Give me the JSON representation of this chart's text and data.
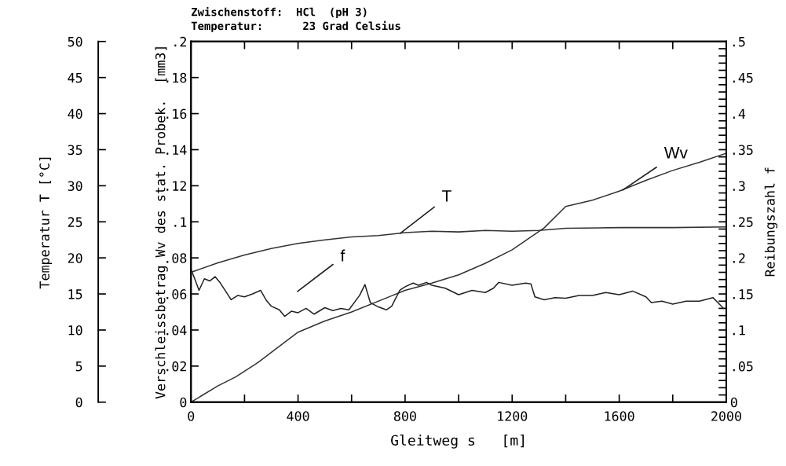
{
  "chart_data": {
    "type": "line",
    "title": "Zwischenstoff:  HCl  (pH 3)",
    "subtitle": "Temperatur:      23 Grad Celsius",
    "xlabel": "Gleitweg s   [m]",
    "ylabel": "Verschleissbetrag Wv des stat. Probek.  [mm3]",
    "y2label": "Reibungszahl f",
    "y3label": "Temperatur T [°C]",
    "xlim": [
      0,
      2000
    ],
    "xticks": [
      0,
      {
        "value": 200,
        "label": null
      },
      400,
      {
        "value": 600,
        "label": null
      },
      800,
      {
        "value": 1000,
        "label": null
      },
      1200,
      {
        "value": 1400,
        "label": null
      },
      1600,
      {
        "value": 1800,
        "label": null
      },
      2000
    ],
    "ylim": [
      0,
      0.2
    ],
    "yticks": [
      0,
      {
        "value": 0.02,
        "label": ".02"
      },
      {
        "value": 0.04,
        "label": ".04"
      },
      {
        "value": 0.06,
        "label": ".06"
      },
      {
        "value": 0.08,
        "label": ".08"
      },
      {
        "value": 0.1,
        "label": ".1"
      },
      {
        "value": 0.12,
        "label": ".12"
      },
      {
        "value": 0.14,
        "label": ".14"
      },
      {
        "value": 0.16,
        "label": ".16"
      },
      {
        "value": 0.18,
        "label": ".18"
      },
      {
        "value": 0.2,
        "label": ".2"
      }
    ],
    "y2lim": [
      0,
      0.5
    ],
    "y2ticks": [
      0,
      {
        "value": 0.01,
        "label": null
      },
      {
        "value": 0.02,
        "label": null
      },
      {
        "value": 0.03,
        "label": null
      },
      {
        "value": 0.04,
        "label": null
      },
      {
        "value": 0.05,
        "label": ".05"
      },
      {
        "value": 0.06,
        "label": null
      },
      {
        "value": 0.07,
        "label": null
      },
      {
        "value": 0.08,
        "label": null
      },
      {
        "value": 0.09,
        "label": null
      },
      {
        "value": 0.1,
        "label": ".1"
      },
      {
        "value": 0.11,
        "label": null
      },
      {
        "value": 0.12,
        "label": null
      },
      {
        "value": 0.13,
        "label": null
      },
      {
        "value": 0.14,
        "label": null
      },
      {
        "value": 0.15,
        "label": ".15"
      },
      {
        "value": 0.16,
        "label": null
      },
      {
        "value": 0.17,
        "label": null
      },
      {
        "value": 0.18,
        "label": null
      },
      {
        "value": 0.19,
        "label": null
      },
      {
        "value": 0.2,
        "label": ".2"
      },
      {
        "value": 0.21,
        "label": null
      },
      {
        "value": 0.22,
        "label": null
      },
      {
        "value": 0.23,
        "label": null
      },
      {
        "value": 0.24,
        "label": null
      },
      {
        "value": 0.25,
        "label": ".25"
      },
      {
        "value": 0.26,
        "label": null
      },
      {
        "value": 0.27,
        "label": null
      },
      {
        "value": 0.28,
        "label": null
      },
      {
        "value": 0.29,
        "label": null
      },
      {
        "value": 0.3,
        "label": ".3"
      },
      {
        "value": 0.31,
        "label": null
      },
      {
        "value": 0.32,
        "label": null
      },
      {
        "value": 0.33,
        "label": null
      },
      {
        "value": 0.34,
        "label": null
      },
      {
        "value": 0.35,
        "label": ".35"
      },
      {
        "value": 0.36,
        "label": null
      },
      {
        "value": 0.37,
        "label": null
      },
      {
        "value": 0.38,
        "label": null
      },
      {
        "value": 0.39,
        "label": null
      },
      {
        "value": 0.4,
        "label": ".4"
      },
      {
        "value": 0.41,
        "label": null
      },
      {
        "value": 0.42,
        "label": null
      },
      {
        "value": 0.43,
        "label": null
      },
      {
        "value": 0.44,
        "label": null
      },
      {
        "value": 0.45,
        "label": ".45"
      },
      {
        "value": 0.46,
        "label": null
      },
      {
        "value": 0.47,
        "label": null
      },
      {
        "value": 0.48,
        "label": null
      },
      {
        "value": 0.49,
        "label": null
      },
      {
        "value": 0.5,
        "label": ".5"
      }
    ],
    "y3lim": [
      0,
      50
    ],
    "y3ticks": [
      0,
      5,
      10,
      15,
      20,
      25,
      30,
      35,
      40,
      45,
      50
    ],
    "grid": false,
    "legend": false,
    "marker": "none",
    "line_style": "solid",
    "series": [
      {
        "axis": "y3",
        "color": "#333333",
        "x": [
          0,
          100,
          200,
          300,
          400,
          500,
          600,
          700,
          800,
          900,
          1000,
          1100,
          1200,
          1300,
          1400,
          1600,
          1800,
          2000
        ],
        "values": [
          18.0,
          19.3,
          20.4,
          21.3,
          22.0,
          22.5,
          22.9,
          23.1,
          23.5,
          23.7,
          23.6,
          23.8,
          23.7,
          23.8,
          24.1,
          24.2,
          24.2,
          24.3
        ]
      },
      {
        "axis": "y",
        "color": "#333333",
        "x": [
          0,
          100,
          167,
          250,
          400,
          500,
          600,
          750,
          800,
          900,
          1000,
          1100,
          1200,
          1320,
          1400,
          1500,
          1600,
          1700,
          1800,
          1900,
          2000
        ],
        "values": [
          0,
          0.009,
          0.014,
          0.022,
          0.0388,
          0.045,
          0.05,
          0.059,
          0.062,
          0.066,
          0.0706,
          0.077,
          0.0845,
          0.0967,
          0.1085,
          0.112,
          0.117,
          0.123,
          0.1285,
          0.133,
          0.138
        ]
      },
      {
        "axis": "y2",
        "color": "#222222",
        "x": [
          0,
          15,
          30,
          50,
          70,
          90,
          110,
          150,
          175,
          200,
          230,
          260,
          280,
          300,
          330,
          350,
          375,
          400,
          430,
          460,
          500,
          530,
          560,
          590,
          630,
          650,
          670,
          700,
          730,
          750,
          780,
          800,
          830,
          850,
          880,
          900,
          950,
          1000,
          1050,
          1100,
          1130,
          1150,
          1200,
          1250,
          1270,
          1285,
          1320,
          1360,
          1400,
          1450,
          1500,
          1550,
          1600,
          1650,
          1700,
          1720,
          1760,
          1800,
          1850,
          1900,
          1950,
          1990
        ],
        "values": [
          0.184,
          0.17,
          0.155,
          0.171,
          0.168,
          0.174,
          0.165,
          0.142,
          0.148,
          0.146,
          0.15,
          0.155,
          0.142,
          0.133,
          0.128,
          0.119,
          0.126,
          0.124,
          0.13,
          0.122,
          0.131,
          0.127,
          0.13,
          0.128,
          0.148,
          0.163,
          0.138,
          0.132,
          0.128,
          0.133,
          0.155,
          0.16,
          0.165,
          0.162,
          0.166,
          0.162,
          0.158,
          0.149,
          0.155,
          0.152,
          0.158,
          0.166,
          0.162,
          0.165,
          0.164,
          0.146,
          0.142,
          0.145,
          0.144,
          0.148,
          0.148,
          0.152,
          0.149,
          0.154,
          0.146,
          0.138,
          0.14,
          0.136,
          0.14,
          0.14,
          0.145,
          0.13
        ]
      }
    ],
    "annotations": [
      {
        "text": "T",
        "x": 782,
        "y": 0.0936
      },
      "f",
      {
        "text": "Wv",
        "x": 1613,
        "y": 0.1176
      }
    ]
  }
}
